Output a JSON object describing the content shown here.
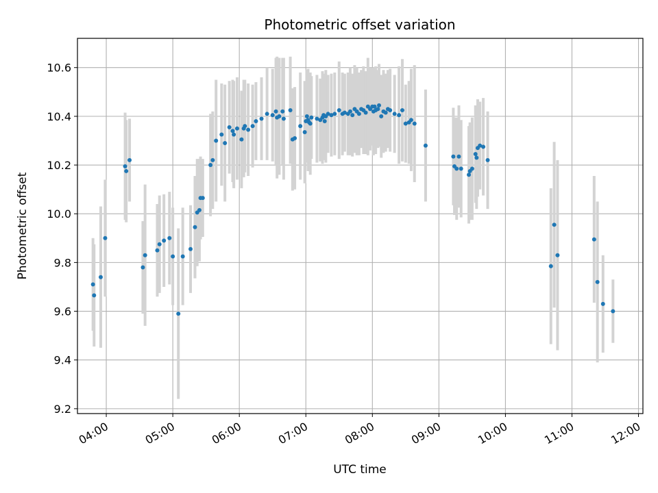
{
  "chart_data": {
    "type": "scatter",
    "title": "Photometric offset variation",
    "xlabel": "UTC time",
    "ylabel": "Photometric offset",
    "grid": true,
    "xlim": [
      "03:34",
      "12:04"
    ],
    "ylim": [
      9.18,
      10.72
    ],
    "x_ticks": [
      "04:00",
      "05:00",
      "06:00",
      "07:00",
      "08:00",
      "09:00",
      "10:00",
      "11:00",
      "12:00"
    ],
    "y_ticks": [
      "9.2",
      "9.4",
      "9.6",
      "9.8",
      "10.0",
      "10.2",
      "10.4",
      "10.6"
    ],
    "colors": {
      "points": "#1f77b4",
      "errorbars": "#d3d3d3",
      "grid": "#b0b0b0"
    },
    "series": [
      {
        "x": [
          "03:48",
          "03:49",
          "03:55",
          "03:59",
          "04:17",
          "04:18",
          "04:21",
          "04:33",
          "04:35",
          "04:46",
          "04:48",
          "04:52",
          "04:57",
          "05:00",
          "05:05",
          "05:09",
          "05:16",
          "05:20",
          "05:22",
          "05:24",
          "05:25",
          "05:27",
          "05:34",
          "05:36",
          "05:39",
          "05:44",
          "05:47",
          "05:51",
          "05:54",
          "05:55",
          "05:58",
          "06:02",
          "06:04",
          "06:05",
          "06:08",
          "06:12",
          "06:15",
          "06:20",
          "06:25",
          "06:30",
          "06:33",
          "06:34",
          "06:36",
          "06:39",
          "06:40",
          "06:46",
          "06:48",
          "06:50",
          "06:55",
          "06:59",
          "07:00",
          "07:01",
          "07:02",
          "07:03",
          "07:04",
          "07:05",
          "07:10",
          "07:13",
          "07:15",
          "07:16",
          "07:17",
          "07:18",
          "07:20",
          "07:23",
          "07:26",
          "07:30",
          "07:33",
          "07:35",
          "07:38",
          "07:40",
          "07:42",
          "07:44",
          "07:46",
          "07:48",
          "07:50",
          "07:52",
          "07:54",
          "07:56",
          "07:58",
          "08:00",
          "08:01",
          "08:02",
          "08:03",
          "08:05",
          "08:06",
          "08:08",
          "08:10",
          "08:12",
          "08:14",
          "08:16",
          "08:20",
          "08:24",
          "08:27",
          "08:30",
          "08:33",
          "08:35",
          "08:38",
          "08:48",
          "09:13",
          "09:14",
          "09:16",
          "09:18",
          "09:20",
          "09:27",
          "09:28",
          "09:30",
          "09:33",
          "09:34",
          "09:35",
          "09:37",
          "09:40",
          "09:44",
          "10:41",
          "10:44",
          "10:47",
          "11:20",
          "11:23",
          "11:28",
          "11:37"
        ],
        "y": [
          9.71,
          9.665,
          9.74,
          9.9,
          10.195,
          10.175,
          10.22,
          9.78,
          9.83,
          9.85,
          9.875,
          9.89,
          9.9,
          9.825,
          9.59,
          9.825,
          9.855,
          9.945,
          10.005,
          10.015,
          10.065,
          10.065,
          10.2,
          10.22,
          10.3,
          10.325,
          10.29,
          10.355,
          10.34,
          10.325,
          10.35,
          10.305,
          10.35,
          10.36,
          10.345,
          10.36,
          10.38,
          10.39,
          10.41,
          10.405,
          10.42,
          10.395,
          10.4,
          10.42,
          10.39,
          10.425,
          10.305,
          10.31,
          10.36,
          10.335,
          10.38,
          10.4,
          10.385,
          10.375,
          10.37,
          10.395,
          10.39,
          10.385,
          10.395,
          10.405,
          10.38,
          10.4,
          10.41,
          10.405,
          10.41,
          10.425,
          10.41,
          10.415,
          10.41,
          10.42,
          10.405,
          10.43,
          10.42,
          10.41,
          10.43,
          10.425,
          10.415,
          10.44,
          10.43,
          10.44,
          10.42,
          10.44,
          10.425,
          10.43,
          10.445,
          10.4,
          10.42,
          10.415,
          10.43,
          10.425,
          10.41,
          10.405,
          10.425,
          10.37,
          10.375,
          10.385,
          10.37,
          10.28,
          10.235,
          10.195,
          10.185,
          10.235,
          10.185,
          10.16,
          10.175,
          10.185,
          10.245,
          10.23,
          10.27,
          10.28,
          10.275,
          10.22,
          9.785,
          9.955,
          9.83,
          9.895,
          9.72,
          9.63,
          9.6
        ],
        "yerr": [
          0.19,
          0.21,
          0.29,
          0.24,
          0.22,
          0.21,
          0.17,
          0.19,
          0.29,
          0.19,
          0.2,
          0.19,
          0.19,
          0.2,
          0.35,
          0.2,
          0.18,
          0.21,
          0.22,
          0.21,
          0.17,
          0.16,
          0.21,
          0.2,
          0.25,
          0.21,
          0.24,
          0.19,
          0.21,
          0.22,
          0.21,
          0.2,
          0.2,
          0.19,
          0.19,
          0.17,
          0.16,
          0.17,
          0.19,
          0.19,
          0.22,
          0.25,
          0.24,
          0.22,
          0.25,
          0.22,
          0.21,
          0.21,
          0.22,
          0.21,
          0.16,
          0.19,
          0.21,
          0.2,
          0.21,
          0.17,
          0.18,
          0.17,
          0.19,
          0.17,
          0.16,
          0.19,
          0.16,
          0.17,
          0.17,
          0.2,
          0.17,
          0.16,
          0.17,
          0.18,
          0.17,
          0.18,
          0.18,
          0.17,
          0.16,
          0.18,
          0.17,
          0.2,
          0.17,
          0.16,
          0.18,
          0.16,
          0.18,
          0.16,
          0.17,
          0.17,
          0.17,
          0.16,
          0.16,
          0.17,
          0.16,
          0.2,
          0.21,
          0.16,
          0.17,
          0.21,
          0.24,
          0.23,
          0.2,
          0.2,
          0.21,
          0.21,
          0.2,
          0.2,
          0.2,
          0.21,
          0.2,
          0.21,
          0.2,
          0.18,
          0.2,
          0.2,
          0.32,
          0.34,
          0.39,
          0.26,
          0.33,
          0.2,
          0.13
        ]
      }
    ]
  }
}
